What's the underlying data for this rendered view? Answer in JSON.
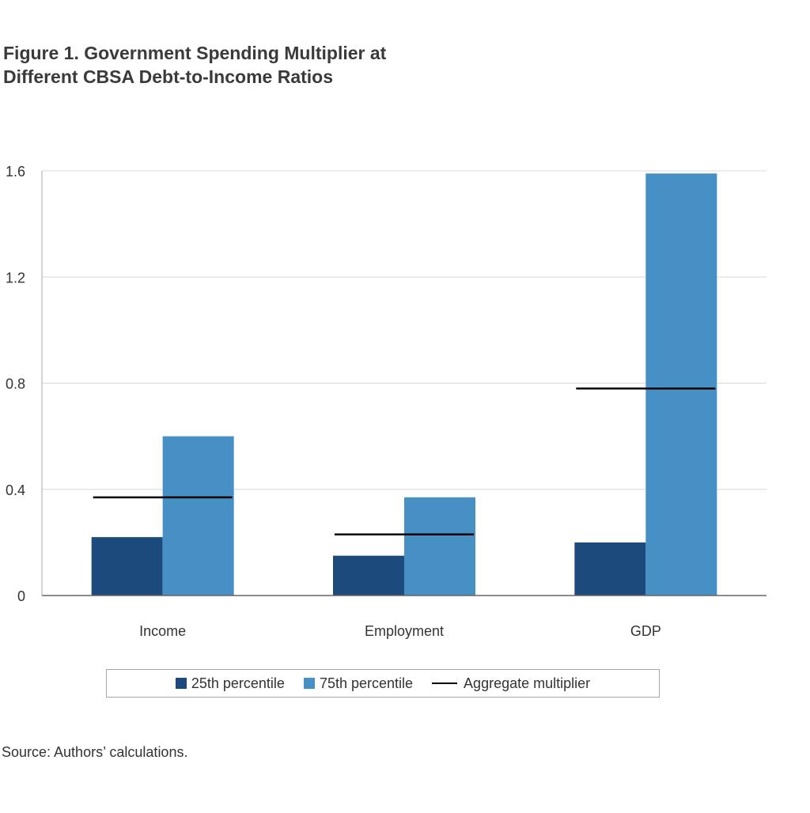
{
  "title_lines": [
    "Figure 1. Government Spending Multiplier at",
    "Different CBSA Debt-to-Income Ratios"
  ],
  "source": "Source: Authors’ calculations.",
  "colors": {
    "p25": "#1d4a7c",
    "p75": "#4790c6",
    "aggregate": "#000000",
    "grid": "#d9d9d9",
    "axis": "#666666"
  },
  "chart_data": {
    "type": "bar",
    "title": "Figure 1. Government Spending Multiplier at Different CBSA Debt-to-Income Ratios",
    "xlabel": "",
    "ylabel": "",
    "categories": [
      "Income",
      "Employment",
      "GDP"
    ],
    "series": [
      {
        "name": "25th percentile",
        "type": "bar",
        "values": [
          0.22,
          0.15,
          0.2
        ]
      },
      {
        "name": "75th percentile",
        "type": "bar",
        "values": [
          0.6,
          0.37,
          1.59
        ]
      },
      {
        "name": "Aggregate multiplier",
        "type": "line-marker",
        "values": [
          0.37,
          0.23,
          0.78
        ]
      }
    ],
    "ylim": [
      0,
      1.6
    ],
    "yticks": [
      0,
      0.4,
      0.8,
      1.2,
      1.6
    ],
    "ytick_labels": [
      "0",
      "0.4",
      "0.8",
      "1.2",
      "1.6"
    ],
    "grid": true,
    "legend_position": "bottom"
  }
}
